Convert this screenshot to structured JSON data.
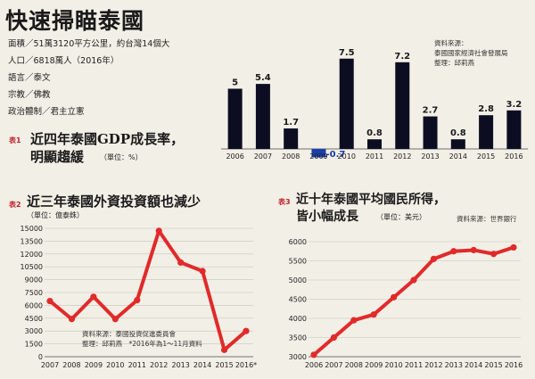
{
  "page": {
    "title": "快速掃瞄泰國",
    "facts": [
      "面積／51萬3120平方公里，約台灣14個大",
      "人口／6818萬人（2016年）",
      "語言／泰文",
      "宗教／佛教",
      "政治體制／君主立憲"
    ]
  },
  "chart_data": [
    {
      "type": "bar",
      "tag": "表1",
      "title": "近四年泰國GDP成長率，明顯趨緩",
      "title_lines": [
        "近四年泰國GDP成長率，",
        "明顯趨緩"
      ],
      "unit": "（單位：%）",
      "source": [
        "資料來源：",
        "泰國國家經濟社會發展局",
        "整理：邱莉燕"
      ],
      "categories": [
        "2006",
        "2007",
        "2008",
        "2009",
        "2010",
        "2011",
        "2012",
        "2013",
        "2014",
        "2015",
        "2016"
      ],
      "values": [
        5,
        5.4,
        1.7,
        -0.7,
        7.5,
        0.8,
        7.2,
        2.7,
        0.8,
        2.8,
        3.2
      ],
      "value_labels": [
        "5",
        "5.4",
        "1.7",
        "-0.7",
        "7.5",
        "0.8",
        "7.2",
        "2.7",
        "0.8",
        "2.8",
        "3.2"
      ],
      "ylim": [
        -1,
        8
      ],
      "colors": {
        "positive": "#0d0d22",
        "negative": "#1d3fa8",
        "label_positive": "#1a1a1a",
        "label_negative": "#1d3fa8"
      }
    },
    {
      "type": "line",
      "tag": "表2",
      "title": "近三年泰國外資投資額也減少",
      "unit": "（單位：億泰銖）",
      "source": [
        "資料來源：泰國投資促進委員會",
        "整理：邱莉燕　*2016年為1～11月資料"
      ],
      "x": [
        "2007",
        "2008",
        "2009",
        "2010",
        "2011",
        "2012",
        "2013",
        "2014",
        "2015",
        "2016*"
      ],
      "values": [
        6500,
        4400,
        7000,
        4400,
        6600,
        14700,
        11000,
        10000,
        800,
        3000
      ],
      "ylim": [
        0,
        15000
      ],
      "yticks": [
        "0",
        "1500",
        "3000",
        "4500",
        "6000",
        "7500",
        "9000",
        "10500",
        "12000",
        "13500",
        "15000"
      ],
      "grid": true,
      "colors": {
        "line": "#e12a2a"
      }
    },
    {
      "type": "line",
      "tag": "表3",
      "title": "近十年泰國平均國民所得，皆小幅成長",
      "title_lines": [
        "近十年泰國平均國民所得，",
        "皆小幅成長"
      ],
      "unit": "（單位：美元）",
      "source": [
        "資料來源：世界銀行"
      ],
      "x": [
        "2006",
        "2007",
        "2008",
        "2009",
        "2010",
        "2011",
        "2012",
        "2013",
        "2014",
        "2015",
        "2016"
      ],
      "values": [
        3050,
        3500,
        3950,
        4100,
        4550,
        5000,
        5550,
        5750,
        5780,
        5680,
        5850
      ],
      "ylim": [
        3000,
        6000
      ],
      "yticks": [
        "3000",
        "3500",
        "4000",
        "4500",
        "5000",
        "5500",
        "6000"
      ],
      "grid": true,
      "colors": {
        "line": "#e12a2a"
      }
    }
  ]
}
